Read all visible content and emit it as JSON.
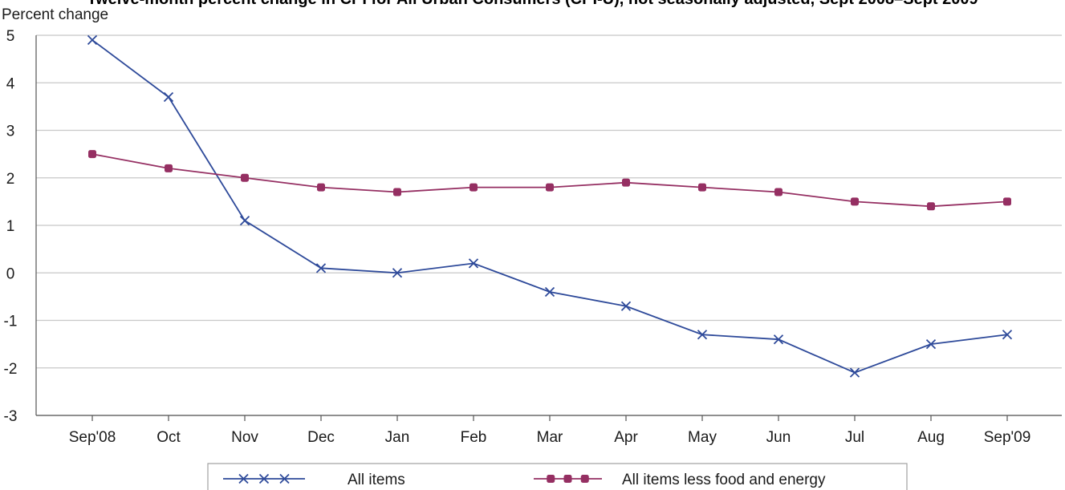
{
  "chart_data": {
    "type": "line",
    "title": "Twelve-month percent change in CPI for All Urban Consumers (CPI-U), not seasonally adjusted, Sept 2008–Sept 2009",
    "ylabel": "Percent change",
    "xlabel": "",
    "ylim": [
      -3,
      5
    ],
    "yticks": [
      5,
      4,
      3,
      2,
      1,
      0,
      -1,
      -2,
      -3
    ],
    "categories": [
      "Sep'08",
      "Oct",
      "Nov",
      "Dec",
      "Jan",
      "Feb",
      "Mar",
      "Apr",
      "May",
      "Jun",
      "Jul",
      "Aug",
      "Sep'09"
    ],
    "grid": true,
    "legend_position": "bottom",
    "series": [
      {
        "name": "All items",
        "color": "#2e4a9a",
        "marker": "x",
        "values": [
          4.9,
          3.7,
          1.1,
          0.1,
          0.0,
          0.2,
          -0.4,
          -0.7,
          -1.3,
          -1.4,
          -2.1,
          -1.5,
          -1.3
        ]
      },
      {
        "name": "All items less food and energy",
        "color": "#952f62",
        "marker": "square",
        "values": [
          2.5,
          2.2,
          2.0,
          1.8,
          1.7,
          1.8,
          1.8,
          1.9,
          1.8,
          1.7,
          1.5,
          1.4,
          1.5
        ]
      }
    ]
  }
}
